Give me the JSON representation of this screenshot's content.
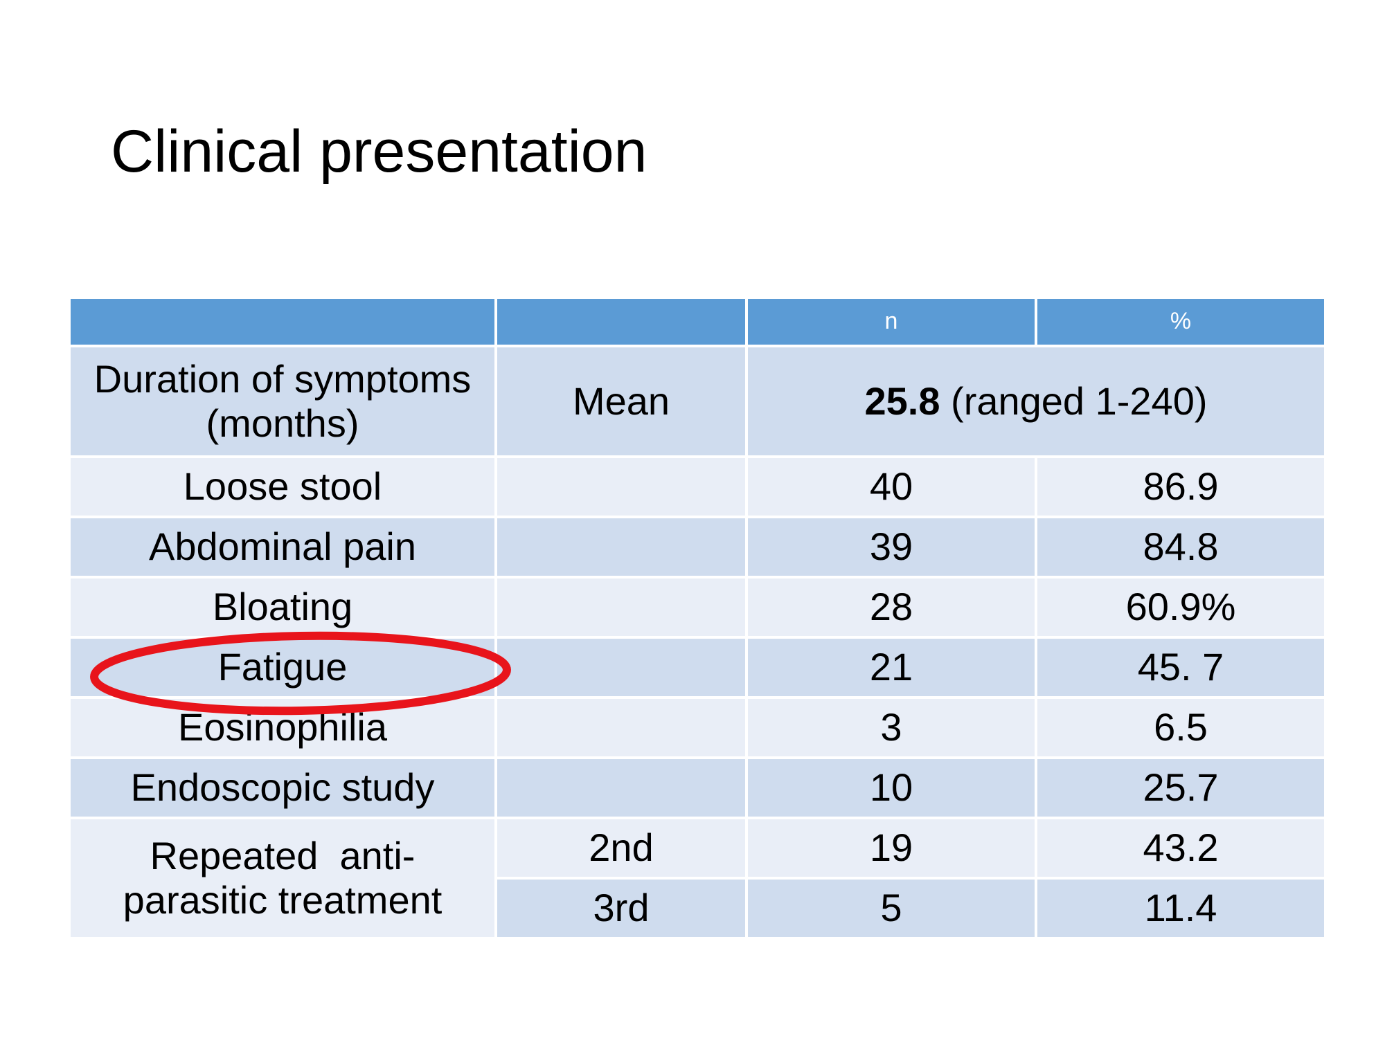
{
  "title": "Clinical presentation",
  "table": {
    "headers": [
      "",
      "",
      "n",
      "%"
    ],
    "duration_row": {
      "label_line1": "Duration of symptoms",
      "label_line2": "(months)",
      "stat": "Mean",
      "value_bold": "25.8",
      "value_rest": " (ranged 1-240)"
    },
    "rows": [
      {
        "label": "Loose stool",
        "sub": "",
        "n": "40",
        "pct": "86.9"
      },
      {
        "label": "Abdominal pain",
        "sub": "",
        "n": "39",
        "pct": "84.8"
      },
      {
        "label": "Bloating",
        "sub": "",
        "n": "28",
        "pct": "60.9%"
      },
      {
        "label": "Fatigue",
        "sub": "",
        "n": "21",
        "pct": "45. 7"
      },
      {
        "label": "Eosinophilia",
        "sub": "",
        "n": "3",
        "pct": "6.5"
      },
      {
        "label": "Endoscopic study",
        "sub": "",
        "n": "10",
        "pct": "25.7"
      }
    ],
    "treatment": {
      "label_line1": "Repeated  anti-",
      "label_line2": "parasitic treatment",
      "rows": [
        {
          "sub": "2nd",
          "n": "19",
          "pct": "43.2"
        },
        {
          "sub": "3rd",
          "n": "5",
          "pct": "11.4"
        }
      ]
    }
  },
  "highlight_color": "#e8141b",
  "header_color": "#5b9bd5",
  "band_dark": "#cfdcee",
  "band_light": "#e9eef7"
}
